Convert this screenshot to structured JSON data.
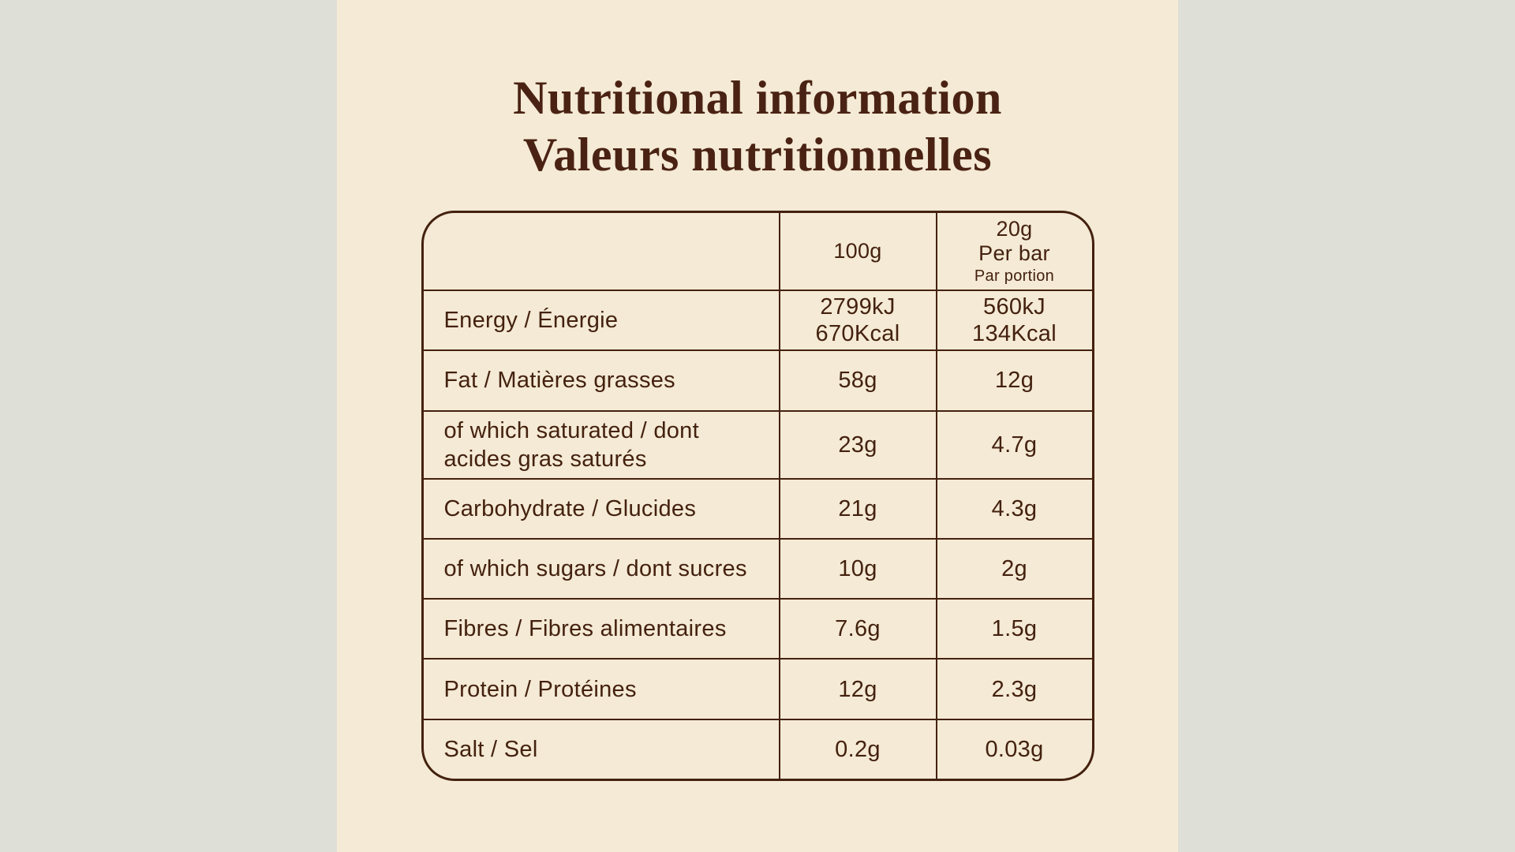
{
  "colors": {
    "backdrop": "#dedfd6",
    "panel": "#f4ead5",
    "ink": "#44210f",
    "title_ink": "#4a2213"
  },
  "title": {
    "line1": "Nutritional information",
    "line2": "Valeurs nutritionnelles"
  },
  "table": {
    "columns": {
      "per_100g": "100g",
      "per_bar_amount": "20g",
      "per_bar_label_en": "Per bar",
      "per_bar_label_fr": "Par portion"
    },
    "rows": [
      {
        "label": "Energy / Énergie",
        "per_100g": [
          "2799kJ",
          "670Kcal"
        ],
        "per_bar": [
          "560kJ",
          "134Kcal"
        ]
      },
      {
        "label": "Fat / Matières grasses",
        "per_100g": [
          "58g"
        ],
        "per_bar": [
          "12g"
        ]
      },
      {
        "label": "of which saturated / dont acides gras saturés",
        "per_100g": [
          "23g"
        ],
        "per_bar": [
          "4.7g"
        ]
      },
      {
        "label": "Carbohydrate / Glucides",
        "per_100g": [
          "21g"
        ],
        "per_bar": [
          "4.3g"
        ]
      },
      {
        "label": "of which sugars / dont sucres",
        "per_100g": [
          "10g"
        ],
        "per_bar": [
          "2g"
        ]
      },
      {
        "label": "Fibres / Fibres alimentaires",
        "per_100g": [
          "7.6g"
        ],
        "per_bar": [
          "1.5g"
        ]
      },
      {
        "label": "Protein / Protéines",
        "per_100g": [
          "12g"
        ],
        "per_bar": [
          "2.3g"
        ]
      },
      {
        "label": "Salt / Sel",
        "per_100g": [
          "0.2g"
        ],
        "per_bar": [
          "0.03g"
        ]
      }
    ]
  }
}
